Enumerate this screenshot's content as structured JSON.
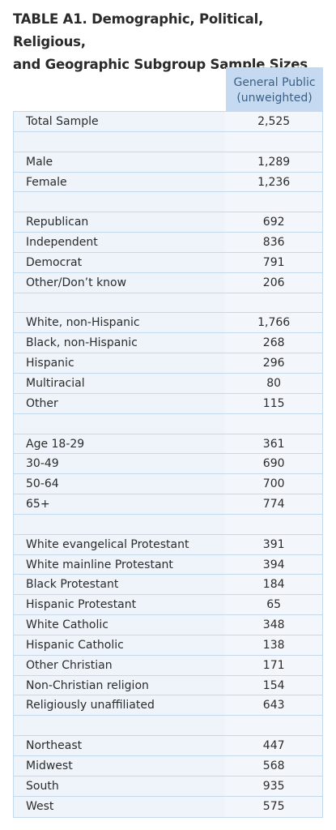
{
  "title_line1": "TABLE A1. Demographic, Political, Religious,",
  "title_line2": "and Geographic Subgroup Sample Sizes",
  "header": {
    "col_line1": "General Public",
    "col_line2": "(unweighted)"
  },
  "rows": [
    {
      "label": "Total Sample",
      "value": "2,525"
    },
    {
      "label": "",
      "value": ""
    },
    {
      "label": "Male",
      "value": "1,289"
    },
    {
      "label": "Female",
      "value": "1,236"
    },
    {
      "label": "",
      "value": ""
    },
    {
      "label": "Republican",
      "value": "692"
    },
    {
      "label": "Independent",
      "value": "836"
    },
    {
      "label": "Democrat",
      "value": "791"
    },
    {
      "label": "Other/Don’t know",
      "value": "206"
    },
    {
      "label": "",
      "value": ""
    },
    {
      "label": "White, non-Hispanic",
      "value": "1,766"
    },
    {
      "label": "Black, non-Hispanic",
      "value": "268"
    },
    {
      "label": "Hispanic",
      "value": "296"
    },
    {
      "label": "Multiracial",
      "value": "80"
    },
    {
      "label": "Other",
      "value": "115"
    },
    {
      "label": "",
      "value": ""
    },
    {
      "label": "Age 18-29",
      "value": "361"
    },
    {
      "label": "30-49",
      "value": "690"
    },
    {
      "label": "50-64",
      "value": "700"
    },
    {
      "label": "65+",
      "value": "774"
    },
    {
      "label": "",
      "value": ""
    },
    {
      "label": "White evangelical Protestant",
      "value": "391"
    },
    {
      "label": "White mainline Protestant",
      "value": "394"
    },
    {
      "label": "Black Protestant",
      "value": "184"
    },
    {
      "label": "Hispanic Protestant",
      "value": "65"
    },
    {
      "label": "White Catholic",
      "value": "348"
    },
    {
      "label": "Hispanic Catholic",
      "value": "138"
    },
    {
      "label": "Other Christian",
      "value": "171"
    },
    {
      "label": "Non-Christian religion",
      "value": "154"
    },
    {
      "label": "Religiously unaffiliated",
      "value": "643"
    },
    {
      "label": "",
      "value": ""
    },
    {
      "label": "Northeast",
      "value": "447"
    },
    {
      "label": "Midwest",
      "value": "568"
    },
    {
      "label": "South",
      "value": "935"
    },
    {
      "label": "West",
      "value": "575"
    }
  ]
}
